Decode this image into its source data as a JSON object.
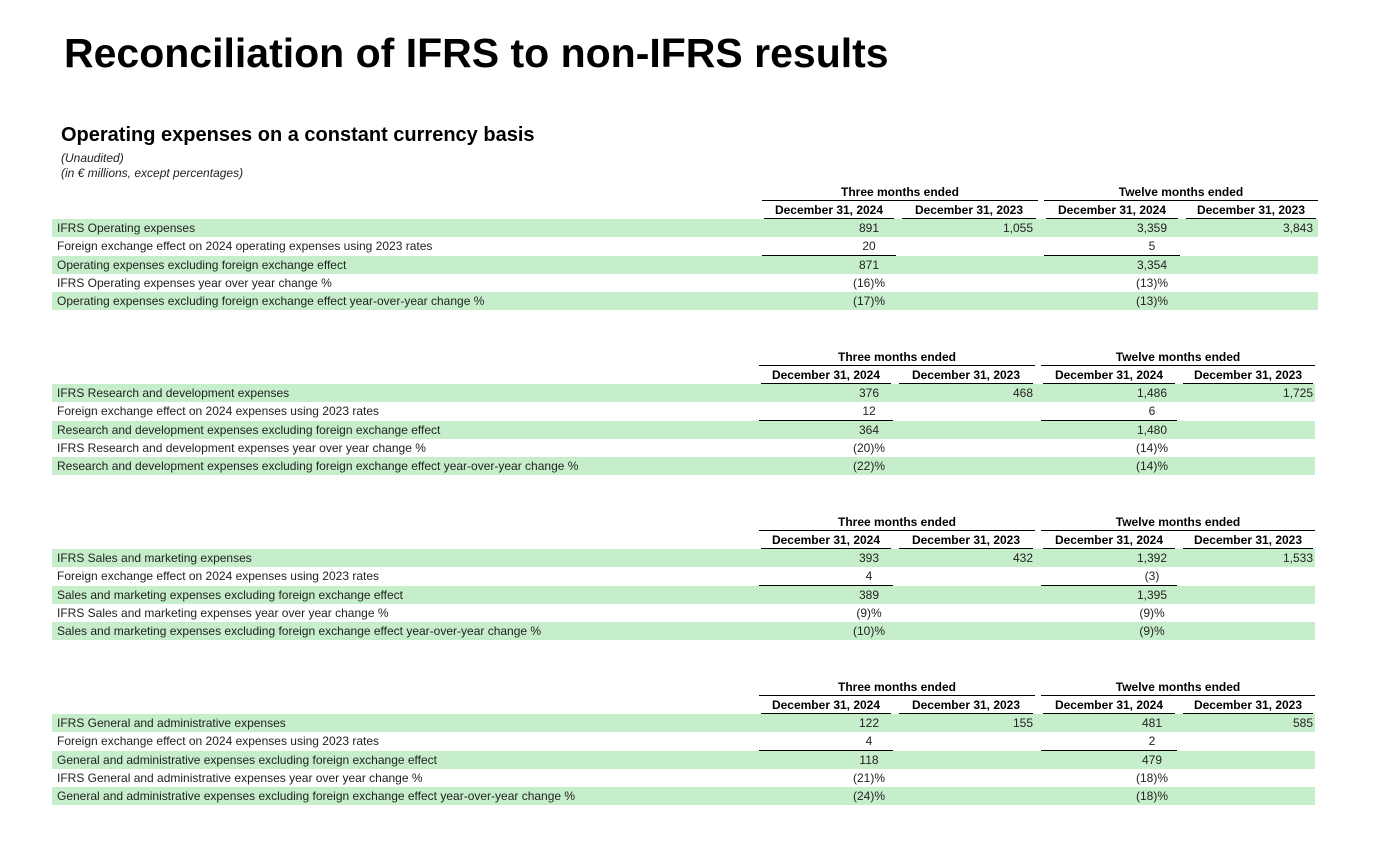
{
  "title": "Reconciliation of IFRS to non-IFRS results",
  "section_title": "Operating expenses on a constant currency basis",
  "notes": [
    "(Unaudited)",
    "(in € millions, except percentages)"
  ],
  "tables": [
    {
      "groups": [
        "Three months ended",
        "Twelve months ended"
      ],
      "columns": [
        "December 31, 2024",
        "December 31, 2023",
        "December 31, 2024",
        "December 31, 2023"
      ],
      "rows": [
        {
          "label": "IFRS Operating expenses",
          "cells": [
            "891",
            "1,055",
            "3,359",
            "3,843"
          ]
        },
        {
          "label": "Foreign exchange effect on 2024 operating expenses using 2023 rates",
          "cells": [
            "20",
            null,
            "5",
            null
          ]
        },
        {
          "label": "Operating expenses excluding foreign exchange effect",
          "cells": [
            "871",
            null,
            "3,354",
            null
          ]
        },
        {
          "label": "IFRS Operating expenses year over year change %",
          "cells": [
            "(16)%",
            null,
            "(13)%",
            null
          ]
        },
        {
          "label": "Operating expenses excluding foreign exchange effect year-over-year change %",
          "cells": [
            "(17)%",
            null,
            "(13)%",
            null
          ]
        }
      ]
    },
    {
      "groups": [
        "Three months ended",
        "Twelve months ended"
      ],
      "columns": [
        "December 31, 2024",
        "December 31, 2023",
        "December 31, 2024",
        "December 31, 2023"
      ],
      "rows": [
        {
          "label": "IFRS Research and development expenses",
          "cells": [
            "376",
            "468",
            "1,486",
            "1,725"
          ]
        },
        {
          "label": "Foreign exchange effect on 2024 expenses using 2023 rates",
          "cells": [
            "12",
            null,
            "6",
            null
          ]
        },
        {
          "label": "Research and development expenses excluding foreign exchange effect",
          "cells": [
            "364",
            null,
            "1,480",
            null
          ]
        },
        {
          "label": "IFRS Research and development expenses year over year change %",
          "cells": [
            "(20)%",
            null,
            "(14)%",
            null
          ]
        },
        {
          "label": "Research and development expenses excluding foreign exchange effect year-over-year change %",
          "cells": [
            "(22)%",
            null,
            "(14)%",
            null
          ]
        }
      ]
    },
    {
      "groups": [
        "Three months ended",
        "Twelve months ended"
      ],
      "columns": [
        "December 31, 2024",
        "December 31, 2023",
        "December 31, 2024",
        "December 31, 2023"
      ],
      "rows": [
        {
          "label": "IFRS Sales and marketing expenses",
          "cells": [
            "393",
            "432",
            "1,392",
            "1,533"
          ]
        },
        {
          "label": "Foreign exchange effect on 2024 expenses using 2023 rates",
          "cells": [
            "4",
            null,
            "(3)",
            null
          ]
        },
        {
          "label": "Sales and marketing expenses excluding foreign exchange effect",
          "cells": [
            "389",
            null,
            "1,395",
            null
          ]
        },
        {
          "label": "IFRS Sales and marketing expenses year over year change %",
          "cells": [
            "(9)%",
            null,
            "(9)%",
            null
          ]
        },
        {
          "label": "Sales and marketing expenses excluding foreign exchange effect year-over-year change %",
          "cells": [
            "(10)%",
            null,
            "(9)%",
            null
          ]
        }
      ]
    },
    {
      "groups": [
        "Three months ended",
        "Twelve months ended"
      ],
      "columns": [
        "December 31, 2024",
        "December 31, 2023",
        "December 31, 2024",
        "December 31, 2023"
      ],
      "rows": [
        {
          "label": "IFRS General and administrative expenses",
          "cells": [
            "122",
            "155",
            "481",
            "585"
          ]
        },
        {
          "label": "Foreign exchange effect on 2024 expenses using 2023 rates",
          "cells": [
            "4",
            null,
            "2",
            null
          ]
        },
        {
          "label": "General and administrative expenses excluding foreign exchange effect",
          "cells": [
            "118",
            null,
            "479",
            null
          ]
        },
        {
          "label": "IFRS General and administrative expenses year over year change %",
          "cells": [
            "(21)%",
            null,
            "(18)%",
            null
          ]
        },
        {
          "label": "General and administrative expenses excluding foreign exchange effect year-over-year change %",
          "cells": [
            "(24)%",
            null,
            "(18)%",
            null
          ]
        }
      ]
    }
  ]
}
